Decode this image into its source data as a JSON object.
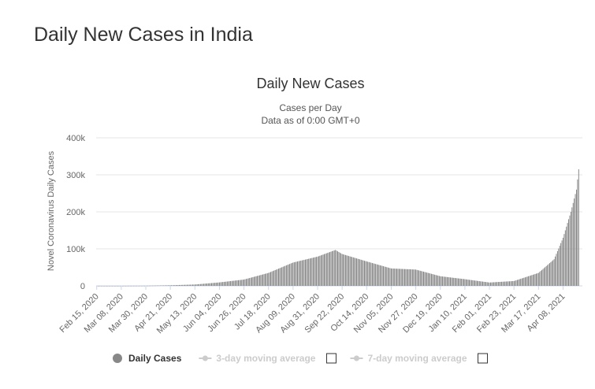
{
  "page": {
    "title": "Daily New Cases in India"
  },
  "colors": {
    "bar": "#7f7f7f",
    "grid": "#e6e6e6",
    "axis_text": "#666666",
    "title_text": "#333333",
    "legend_active": "#888888",
    "legend_inactive": "#cccccc"
  },
  "legend": {
    "items": [
      {
        "label": "Daily Cases",
        "active": true,
        "icon": "filled-circle-icon"
      },
      {
        "label": "3-day moving average",
        "active": false,
        "icon": "line-dot-icon"
      },
      {
        "label": "7-day moving average",
        "active": false,
        "icon": "line-dot-icon"
      }
    ]
  },
  "chart_data": {
    "type": "bar",
    "title": "Daily New Cases",
    "subtitle_lines": [
      "Cases per Day",
      "Data as of 0:00 GMT+0"
    ],
    "ylabel": "Novel Coronavirus Daily Cases",
    "xlabel": "",
    "ylim": [
      0,
      400000
    ],
    "y_ticks": [
      0,
      100000,
      200000,
      300000,
      400000
    ],
    "y_tick_labels": [
      "0",
      "100k",
      "200k",
      "300k",
      "400k"
    ],
    "x_range": [
      "2020-02-15",
      "2021-04-22"
    ],
    "x_tick_labels": [
      "Feb 15, 2020",
      "Mar 08, 2020",
      "Mar 30, 2020",
      "Apr 21, 2020",
      "May 13, 2020",
      "Jun 04, 2020",
      "Jun 26, 2020",
      "Jul 18, 2020",
      "Aug 09, 2020",
      "Aug 31, 2020",
      "Sep 22, 2020",
      "Oct 14, 2020",
      "Nov 05, 2020",
      "Nov 27, 2020",
      "Dec 19, 2020",
      "Jan 10, 2021",
      "Feb 01, 2021",
      "Feb 23, 2021",
      "Mar 17, 2021",
      "Apr 08, 2021"
    ],
    "grid": true,
    "legend_position": "bottom",
    "series": [
      {
        "name": "Daily Cases",
        "points": [
          [
            "2020-02-15",
            0
          ],
          [
            "2020-03-08",
            10
          ],
          [
            "2020-03-30",
            300
          ],
          [
            "2020-04-21",
            1500
          ],
          [
            "2020-05-13",
            3600
          ],
          [
            "2020-06-04",
            9300
          ],
          [
            "2020-06-26",
            17000
          ],
          [
            "2020-07-18",
            35000
          ],
          [
            "2020-08-09",
            63000
          ],
          [
            "2020-08-31",
            79000
          ],
          [
            "2020-09-16",
            97000
          ],
          [
            "2020-09-22",
            86000
          ],
          [
            "2020-10-14",
            66000
          ],
          [
            "2020-11-05",
            47000
          ],
          [
            "2020-11-27",
            44000
          ],
          [
            "2020-12-19",
            26000
          ],
          [
            "2021-01-10",
            18000
          ],
          [
            "2021-02-01",
            9000
          ],
          [
            "2021-02-23",
            13000
          ],
          [
            "2021-03-17",
            35000
          ],
          [
            "2021-03-31",
            72000
          ],
          [
            "2021-04-08",
            130000
          ],
          [
            "2021-04-15",
            200000
          ],
          [
            "2021-04-20",
            260000
          ],
          [
            "2021-04-22",
            315000
          ]
        ]
      }
    ]
  }
}
